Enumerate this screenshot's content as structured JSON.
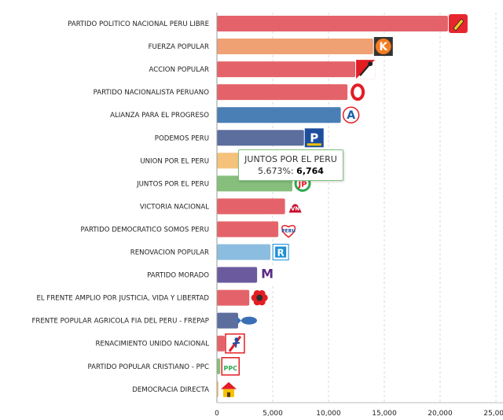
{
  "chart_data": {
    "type": "bar",
    "orientation": "horizontal",
    "categories": [
      "PARTIDO POLITICO NACIONAL PERU LIBRE",
      "FUERZA POPULAR",
      "ACCION POPULAR",
      "PARTIDO NACIONALISTA PERUANO",
      "ALIANZA PARA EL PROGRESO",
      "PODEMOS PERU",
      "UNION POR EL PERU",
      "JUNTOS POR EL PERU",
      "VICTORIA NACIONAL",
      "PARTIDO DEMOCRATICO SOMOS PERU",
      "RENOVACION POPULAR",
      "PARTIDO MORADO",
      "EL FRENTE AMPLIO POR JUSTICIA, VIDA Y LIBERTAD",
      "FRENTE POPULAR AGRICOLA FIA DEL PERU - FREPAP",
      "RENACIMIENTO UNIDO NACIONAL",
      "PARTIDO POPULAR CRISTIANO - PPC",
      "DEMOCRACIA DIRECTA"
    ],
    "values": [
      20700,
      14000,
      12400,
      11700,
      11100,
      7800,
      7400,
      6764,
      6100,
      5500,
      4800,
      3600,
      2900,
      1900,
      700,
      300,
      100
    ],
    "colors": [
      "#e4636a",
      "#f0a173",
      "#e4636a",
      "#e4636a",
      "#4a7fb5",
      "#5b6e9e",
      "#f5c27c",
      "#86bf7c",
      "#e4636a",
      "#e4636a",
      "#8bbde0",
      "#6b5b9e",
      "#e4636a",
      "#5b6e9e",
      "#e4636a",
      "#86bf7c",
      "#f5c27c"
    ],
    "logo_icons": [
      "pencil-icon",
      "k-logo-icon",
      "shovel-icon",
      "o-logo-icon",
      "a-logo-icon",
      "p-logo-icon",
      "union-logo-icon",
      "jp-logo-icon",
      "vn-logo-icon",
      "somos-peru-logo-icon",
      "r-logo-icon",
      "m-logo-icon",
      "flower-logo-icon",
      "fish-logo-icon",
      "run-logo-icon",
      "ppc-logo-icon",
      "house-logo-icon"
    ],
    "xticks": [
      "0",
      "5,000",
      "10,000",
      "15,000",
      "20,000",
      "25,000"
    ],
    "xlim": [
      0,
      25000
    ],
    "grid": true,
    "title": "",
    "xlabel": "",
    "ylabel": "",
    "tooltip": {
      "title": "JUNTOS POR EL PERU",
      "percent": "5.673%:",
      "value": "6,764"
    }
  }
}
